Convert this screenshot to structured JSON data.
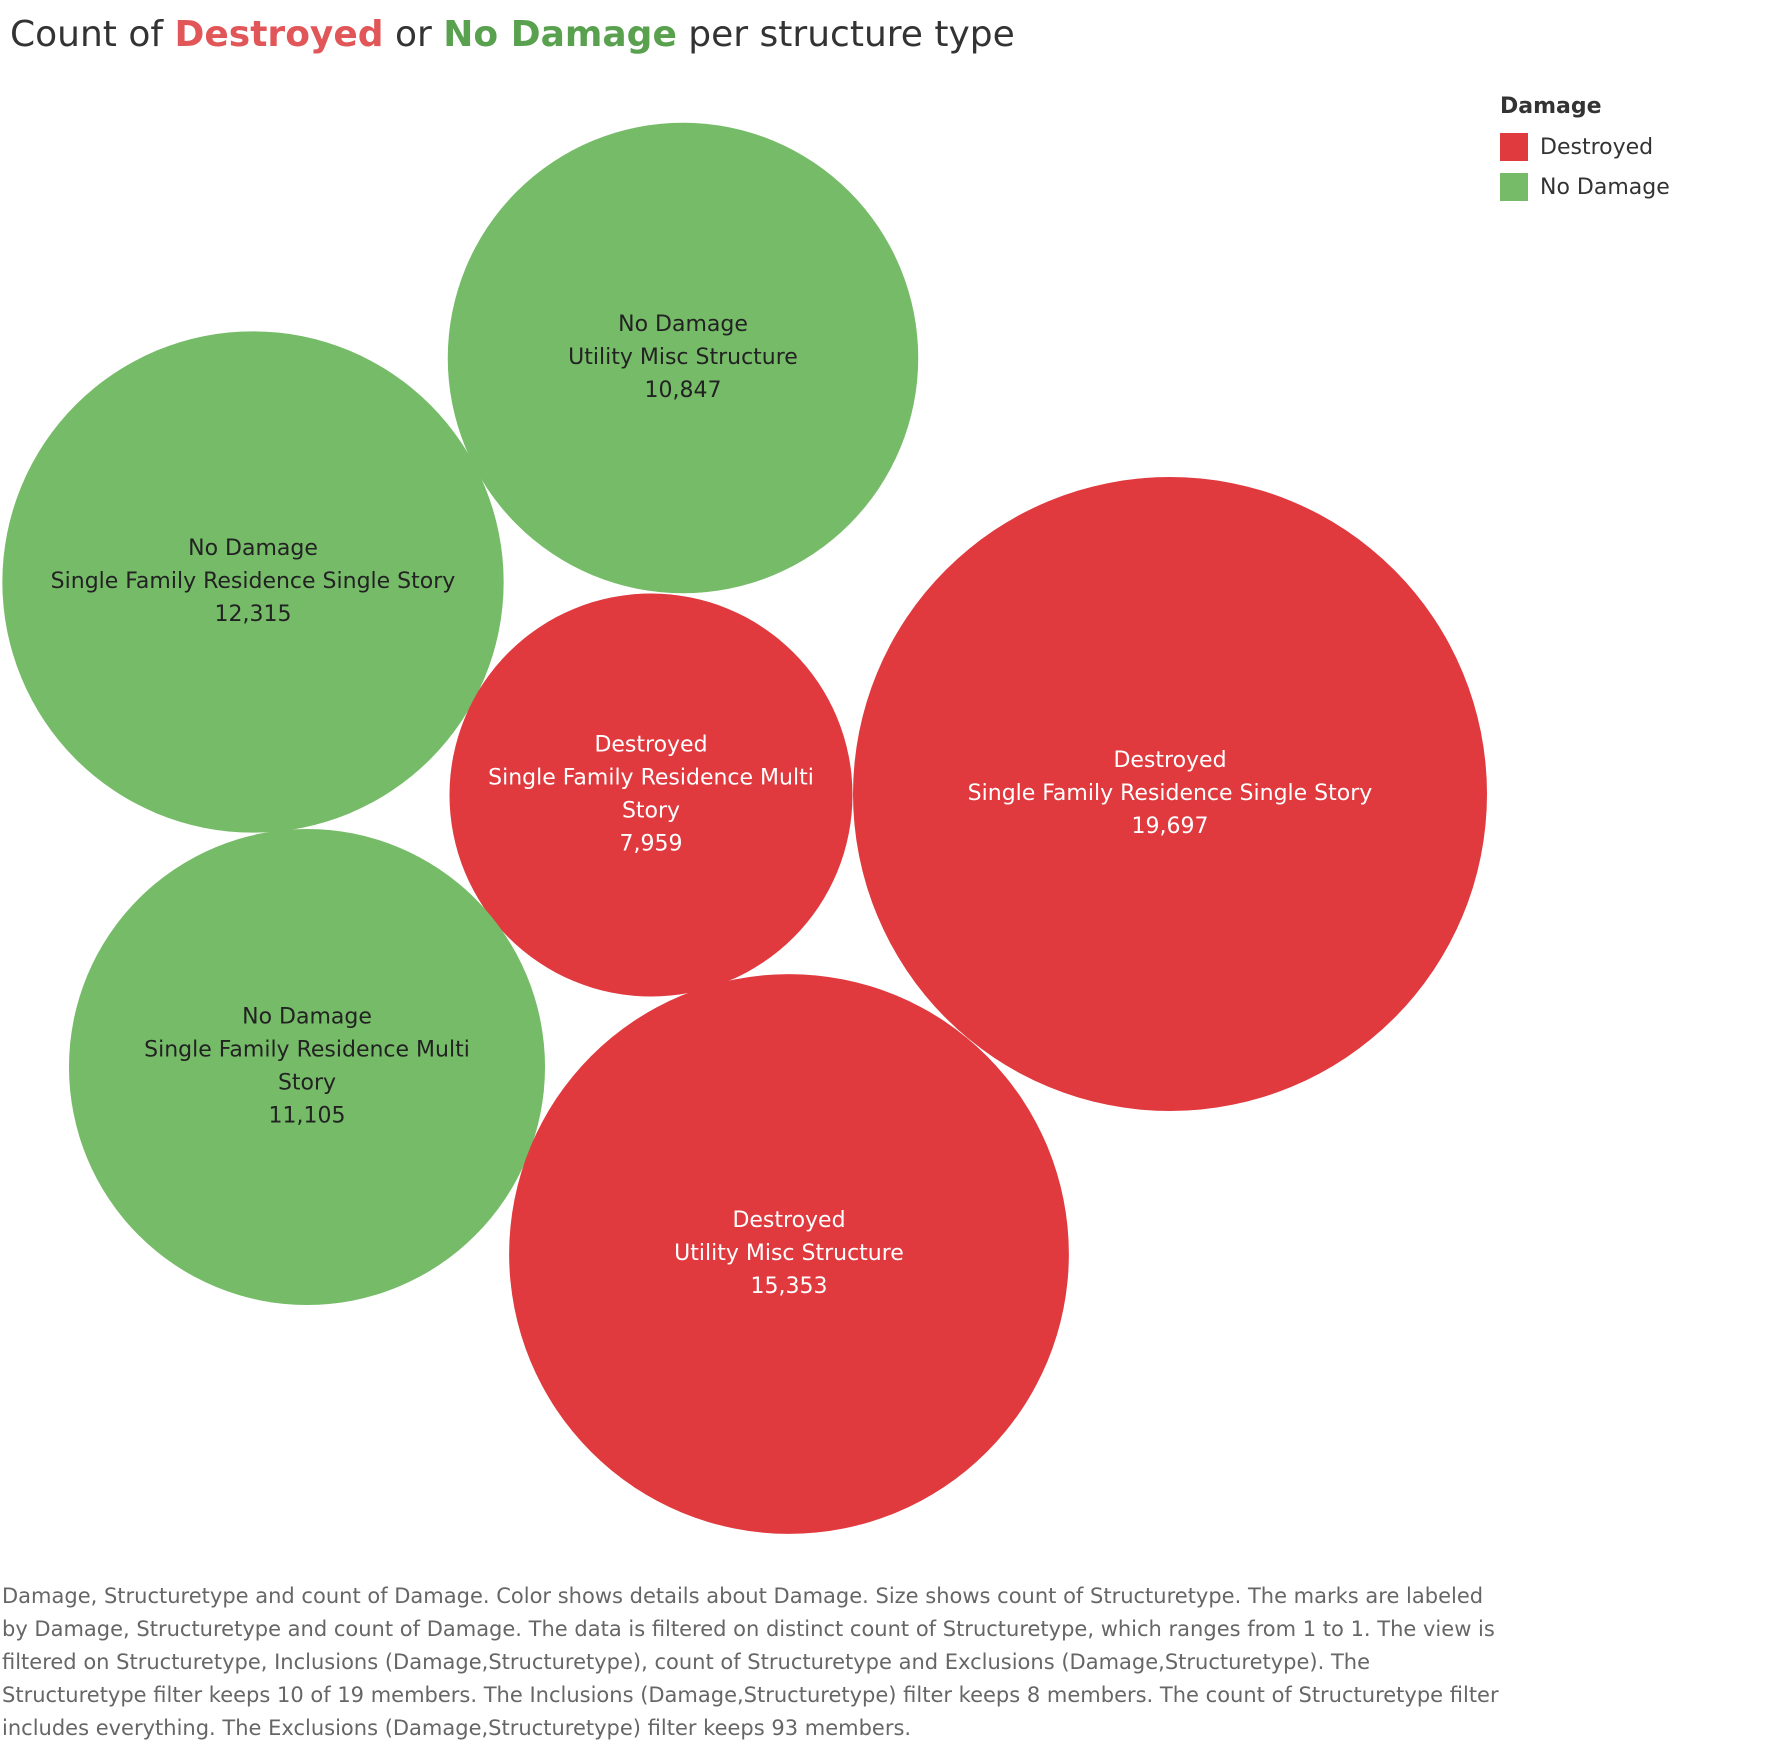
{
  "title": {
    "prefix": "Count of ",
    "destroyed_word": "Destroyed",
    "middle": " or ",
    "nodamage_word": "No Damage",
    "suffix": " per structure type"
  },
  "legend": {
    "title": "Damage",
    "items": [
      {
        "label": "Destroyed",
        "color": "#e0393e"
      },
      {
        "label": "No Damage",
        "color": "#76bc68"
      }
    ]
  },
  "caption": "Damage, Structuretype and count of Damage.  Color shows details about Damage.  Size shows count of Structuretype.  The marks are labeled by Damage, Structuretype and count of Damage. The data is filtered on distinct count of Structuretype, which ranges from 1 to 1. The view is filtered on Structuretype, Inclusions (Damage,Structuretype), count of Structuretype and Exclusions (Damage,Structuretype). The Structuretype filter keeps 10 of 19 members. The Inclusions (Damage,Structuretype) filter keeps 8 members. The count of Structuretype filter includes everything. The Exclusions (Damage,Structuretype) filter keeps 93 members.",
  "chart_data": {
    "type": "bubble",
    "size_field": "count",
    "color_field": "Damage",
    "legend_position": "top-right",
    "bubbles": [
      {
        "damage": "No Damage",
        "structure": "Utility Misc Structure",
        "structure_lines": [
          "Utility Misc Structure"
        ],
        "value": 10847,
        "value_label": "10,847"
      },
      {
        "damage": "No Damage",
        "structure": "Single Family Residence Single Story",
        "structure_lines": [
          "Single Family Residence Single Story"
        ],
        "value": 12315,
        "value_label": "12,315"
      },
      {
        "damage": "Destroyed",
        "structure": "Single Family Residence Multi Story",
        "structure_lines": [
          "Single Family Residence Multi",
          "Story"
        ],
        "value": 7959,
        "value_label": "7,959"
      },
      {
        "damage": "Destroyed",
        "structure": "Single Family Residence Single Story",
        "structure_lines": [
          "Single Family Residence Single Story"
        ],
        "value": 19697,
        "value_label": "19,697"
      },
      {
        "damage": "No Damage",
        "structure": "Single Family Residence Multi Story",
        "structure_lines": [
          "Single Family Residence Multi",
          "Story"
        ],
        "value": 11105,
        "value_label": "11,105"
      },
      {
        "damage": "Destroyed",
        "structure": "Utility Misc Structure",
        "structure_lines": [
          "Utility Misc Structure"
        ],
        "value": 15353,
        "value_label": "15,353"
      }
    ]
  }
}
